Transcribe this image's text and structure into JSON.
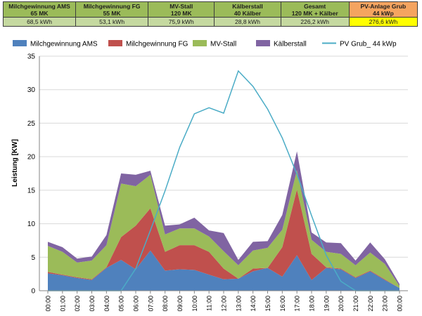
{
  "summary": {
    "columns": [
      {
        "title": "Milchgewinnung AMS",
        "sub": "65 MK",
        "value": "68,5 kWh"
      },
      {
        "title": "Milchgewinnung FG",
        "sub": "55 MK",
        "value": "53,1 kWh"
      },
      {
        "title": "MV-Stall",
        "sub": "120 MK",
        "value": "75,9 kWh"
      },
      {
        "title": "Kälberstall",
        "sub": "40 Kälber",
        "value": "28,8 kWh"
      },
      {
        "title": "Gesamt",
        "sub": "120 MK + Kälber",
        "value": "226,2 kWh"
      },
      {
        "title": "PV-Anlage Grub",
        "sub": "44 kWp",
        "value": "276,6 kWh"
      }
    ]
  },
  "chart_data": {
    "type": "area",
    "stacked": true,
    "categories": [
      "00:00",
      "01:00",
      "02:00",
      "03:00",
      "04:00",
      "05:00",
      "06:00",
      "07:00",
      "08:00",
      "09:00",
      "10:00",
      "11:00",
      "12:00",
      "13:00",
      "14:00",
      "15:00",
      "16:00",
      "17:00",
      "18:00",
      "19:00",
      "20:00",
      "21:00",
      "22:00",
      "23:00",
      "00:00"
    ],
    "series": [
      {
        "name": "Milchgewinnung AMS",
        "color": "#4f81bd",
        "values": [
          2.6,
          2.3,
          1.9,
          1.6,
          3.4,
          4.6,
          3.2,
          6.0,
          3.0,
          3.2,
          3.1,
          2.4,
          1.7,
          1.8,
          2.9,
          3.4,
          2.1,
          5.3,
          1.6,
          3.4,
          3.2,
          1.9,
          2.9,
          1.6,
          0.4
        ]
      },
      {
        "name": "Milchgewinnung FG",
        "color": "#c0504d",
        "values": [
          0.2,
          0.1,
          0.1,
          0.1,
          0.1,
          3.4,
          6.5,
          6.3,
          2.8,
          3.6,
          3.7,
          3.4,
          1.6,
          0.0,
          0.4,
          0.0,
          4.4,
          9.8,
          3.9,
          0.1,
          0.1,
          0.1,
          0.1,
          0.1,
          0.0
        ]
      },
      {
        "name": "MV-Stall",
        "color": "#9bbb59",
        "values": [
          3.9,
          3.4,
          2.2,
          2.8,
          3.3,
          8.0,
          5.9,
          5.0,
          2.6,
          2.5,
          2.5,
          2.3,
          2.6,
          2.0,
          2.7,
          3.0,
          2.6,
          2.9,
          2.1,
          2.3,
          2.2,
          1.8,
          2.7,
          2.3,
          0.3
        ]
      },
      {
        "name": "Kälberstall",
        "color": "#8064a2",
        "values": [
          0.6,
          0.7,
          0.6,
          0.6,
          1.5,
          1.5,
          1.7,
          0.6,
          1.3,
          0.6,
          1.6,
          0.9,
          2.7,
          0.8,
          1.3,
          1.0,
          2.2,
          2.8,
          1.1,
          1.4,
          1.6,
          0.7,
          1.5,
          0.7,
          0.3
        ]
      }
    ],
    "line_series": {
      "name": "PV Grub_ 44 kWp",
      "color": "#4bacc6",
      "values": [
        0,
        0,
        0,
        0,
        0,
        0,
        3.3,
        9.0,
        14.9,
        21.4,
        26.4,
        27.3,
        26.5,
        32.8,
        30.5,
        27.1,
        22.8,
        17.4,
        11.2,
        5.3,
        1.4,
        0,
        0,
        0,
        0
      ]
    },
    "xlabel": "",
    "ylabel": "Leistung [KW]",
    "ylim": [
      0,
      35
    ],
    "yticks": [
      0,
      5,
      10,
      15,
      20,
      25,
      30,
      35
    ],
    "legend": "top",
    "grid": true
  }
}
